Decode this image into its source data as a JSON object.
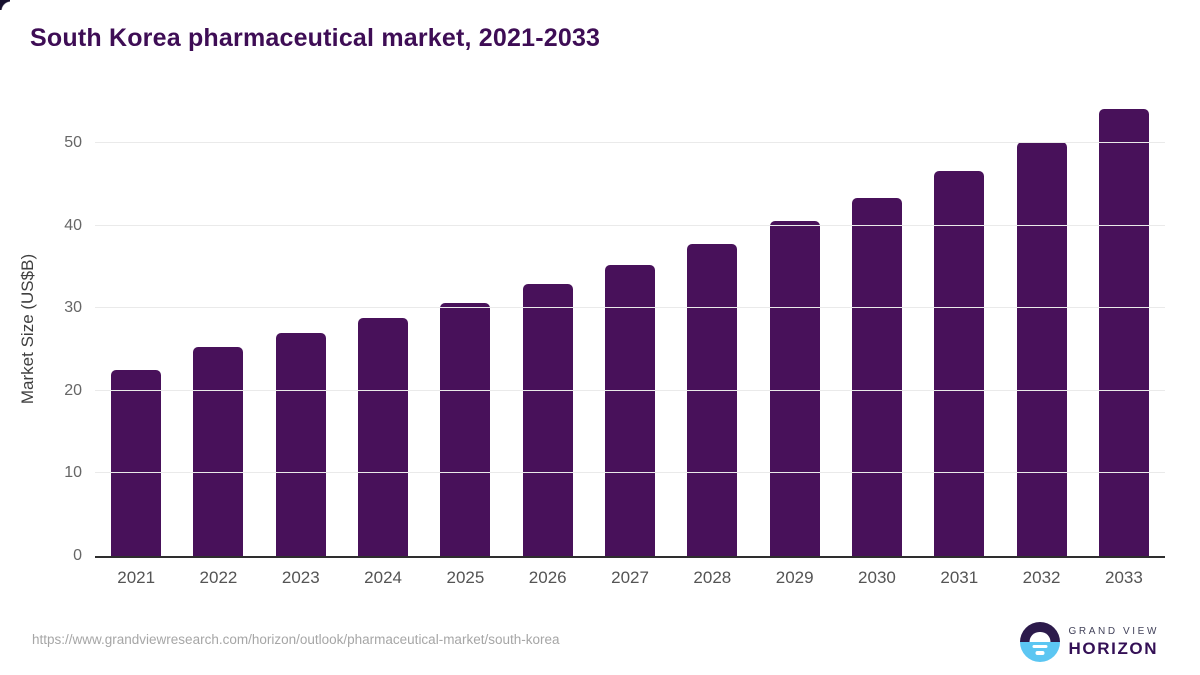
{
  "title": "South Korea pharmaceutical market, 2021-2033",
  "chart_data": {
    "type": "bar",
    "categories": [
      "2021",
      "2022",
      "2023",
      "2024",
      "2025",
      "2026",
      "2027",
      "2028",
      "2029",
      "2030",
      "2031",
      "2032",
      "2033"
    ],
    "values": [
      22.6,
      25.3,
      27.0,
      28.8,
      30.7,
      33.0,
      35.3,
      37.8,
      40.6,
      43.4,
      46.7,
      50.2,
      54.2
    ],
    "title": "South Korea pharmaceutical market, 2021-2033",
    "xlabel": "",
    "ylabel": "Market Size (US$B)",
    "ylim": [
      0,
      55.5
    ],
    "yticks": [
      0,
      10,
      20,
      30,
      40,
      50
    ],
    "grid": true,
    "legend": "none"
  },
  "footer": {
    "source_url": "https://www.grandviewresearch.com/horizon/outlook/pharmaceutical-market/south-korea"
  },
  "logo": {
    "line1": "GRAND VIEW",
    "line2": "HORIZON"
  },
  "colors": {
    "background": "#ffffff",
    "title": "#3e0d55",
    "bar": "#48115a",
    "grid": "#eaeaea",
    "axis": "#2e2e2e",
    "tick": "#666666",
    "url": "#a6a6a6",
    "logo_dark": "#2c1a4b",
    "logo_blue": "#5cc6f2",
    "logo_text": "#341056"
  }
}
